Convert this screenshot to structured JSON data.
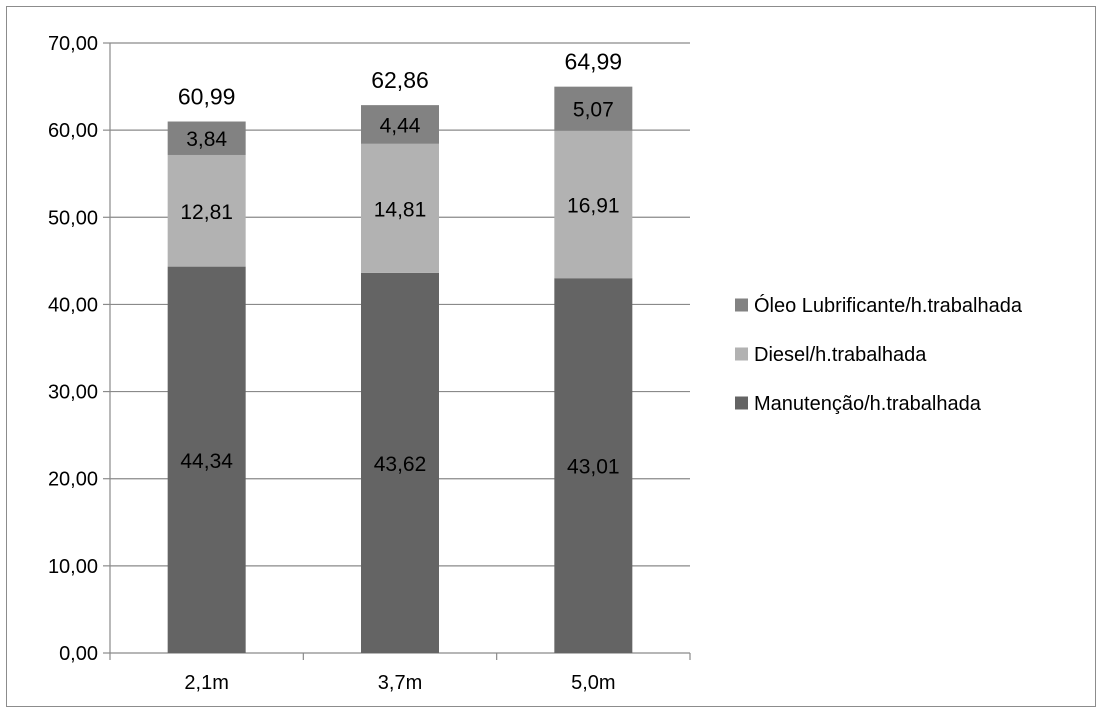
{
  "chart_data": {
    "type": "bar",
    "stacked": true,
    "categories": [
      "2,1m",
      "3,7m",
      "5,0m"
    ],
    "series": [
      {
        "name": "Manutenção/h.trabalhada",
        "values": [
          44.34,
          43.62,
          43.01
        ],
        "labels": [
          "44,34",
          "43,62",
          "43,01"
        ],
        "color": "#646464"
      },
      {
        "name": "Diesel/h.trabalhada",
        "values": [
          12.81,
          14.81,
          16.91
        ],
        "labels": [
          "12,81",
          "14,81",
          "16,91"
        ],
        "color": "#b2b2b2"
      },
      {
        "name": "Óleo Lubrificante/h.trabalhada",
        "values": [
          3.84,
          4.44,
          5.07
        ],
        "labels": [
          "3,84",
          "4,44",
          "5,07"
        ],
        "color": "#828282"
      }
    ],
    "totals": [
      "60,99",
      "62,86",
      "64,99"
    ],
    "ylim": [
      0,
      70
    ],
    "yticks": [
      "0,00",
      "10,00",
      "20,00",
      "30,00",
      "40,00",
      "50,00",
      "60,00",
      "70,00"
    ],
    "grid": true,
    "legend_position": "right",
    "legend_order": [
      "Óleo Lubrificante/h.trabalhada",
      "Diesel/h.trabalhada",
      "Manutenção/h.trabalhada"
    ],
    "title": "",
    "xlabel": "",
    "ylabel": ""
  }
}
